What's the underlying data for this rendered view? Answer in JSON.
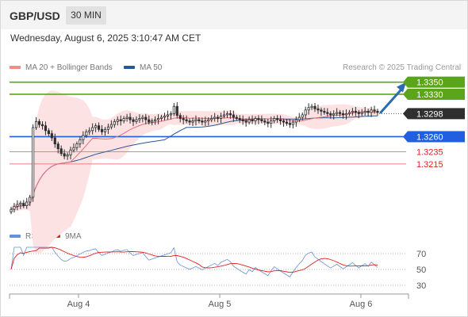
{
  "header": {
    "symbol": "GBP/USD",
    "timeframe": "30 MIN"
  },
  "datetime": "Wednesday, August 6, 2025 3:10:47 AM CET",
  "credit": "Research © 2025 Trading Central",
  "colors": {
    "price_series": "#2e2e2e",
    "bollinger_fill": "#fde2e4",
    "ma20": "#e86f7a",
    "ma50": "#2b5797",
    "resistance": "#5aa51a",
    "pivot": "#1f5fe0",
    "support": "#e88080",
    "forecast_arrow": "#2b6cb0",
    "current_price_label": "#2f2f2f",
    "rsi": "#6a8fd8",
    "rsi_ma": "#e02020"
  },
  "chart_data": [
    {
      "type": "candlestick",
      "title": "",
      "legend": [
        {
          "name": "MA 20 + Bollinger Bands",
          "color": "#f28b8b"
        },
        {
          "name": "MA 50",
          "color": "#2b5797"
        }
      ],
      "x_ticks": [
        "Aug 4",
        "Aug 5",
        "Aug 6"
      ],
      "ylim": [
        1.3135,
        1.336
      ],
      "current_price": 1.3298,
      "levels": [
        {
          "value": 1.335,
          "label": "1.3350",
          "kind": "resistance"
        },
        {
          "value": 1.333,
          "label": "1.3330",
          "kind": "resistance"
        },
        {
          "value": 1.326,
          "label": "1.3260",
          "kind": "pivot"
        },
        {
          "value": 1.3235,
          "label": "1.3235",
          "kind": "support"
        },
        {
          "value": 1.3215,
          "label": "1.3215",
          "kind": "support"
        }
      ],
      "forecast": {
        "from": 1.33,
        "to": 1.335
      },
      "close_series": [
        1.314,
        1.3145,
        1.3148,
        1.315,
        1.3146,
        1.3152,
        1.316,
        1.3275,
        1.3285,
        1.328,
        1.3278,
        1.327,
        1.3265,
        1.3258,
        1.3248,
        1.324,
        1.3232,
        1.3228,
        1.323,
        1.3238,
        1.3242,
        1.3248,
        1.3255,
        1.3262,
        1.3268,
        1.327,
        1.3275,
        1.3278,
        1.3272,
        1.3268,
        1.3272,
        1.3276,
        1.328,
        1.3285,
        1.3288,
        1.3286,
        1.329,
        1.3292,
        1.3288,
        1.3285,
        1.3288,
        1.329,
        1.3292,
        1.3288,
        1.3284,
        1.3286,
        1.3288,
        1.329,
        1.3292,
        1.3294,
        1.3296,
        1.3298,
        1.331,
        1.3295,
        1.329,
        1.3288,
        1.3286,
        1.3284,
        1.3286,
        1.3288,
        1.3286,
        1.3284,
        1.3286,
        1.3288,
        1.329,
        1.3292,
        1.329,
        1.3294,
        1.3296,
        1.3298,
        1.3296,
        1.3292,
        1.329,
        1.3288,
        1.3286,
        1.3284,
        1.3288,
        1.3286,
        1.329,
        1.3288,
        1.3286,
        1.3284,
        1.3282,
        1.3286,
        1.329,
        1.3288,
        1.3286,
        1.3284,
        1.3282,
        1.328,
        1.3284,
        1.3288,
        1.3292,
        1.3296,
        1.3304,
        1.3308,
        1.331,
        1.3306,
        1.3304,
        1.3302,
        1.33,
        1.3298,
        1.3296,
        1.3298,
        1.33,
        1.3298,
        1.3296,
        1.3298,
        1.33,
        1.3302,
        1.33,
        1.3298,
        1.33,
        1.3302,
        1.33,
        1.3304,
        1.3302,
        1.33
      ]
    },
    {
      "type": "line",
      "title": "RSI",
      "legend": [
        {
          "name": "RSI",
          "color": "#6a8fd8"
        },
        {
          "name": "9MA",
          "color": "#e02020"
        }
      ],
      "ylim": [
        20,
        80
      ],
      "y_ticks": [
        70,
        50,
        30
      ],
      "reference_lines": [
        70,
        50,
        30
      ]
    }
  ],
  "labels": {
    "legend_ma20": "MA 20 + Bollinger Bands",
    "legend_ma50": "MA 50",
    "legend_rsi": "RSI",
    "legend_9ma": "9MA"
  }
}
